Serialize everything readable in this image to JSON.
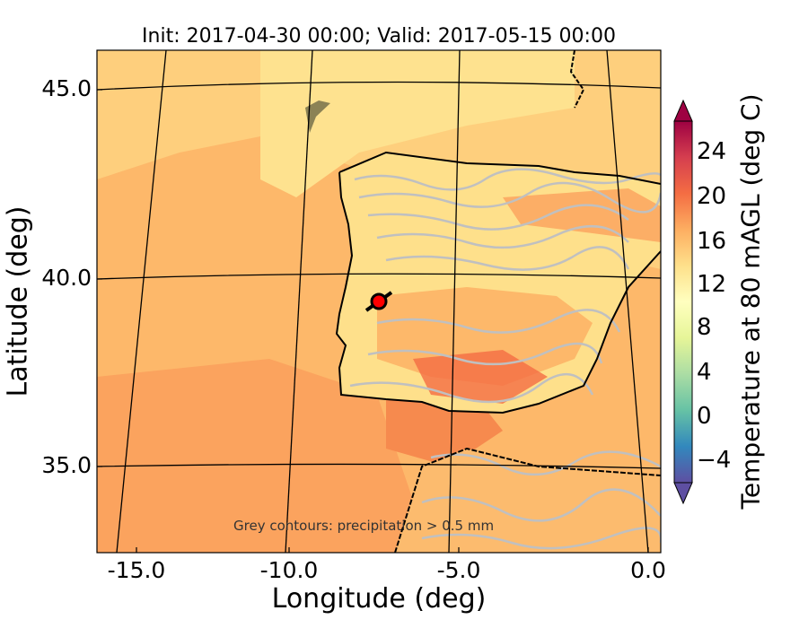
{
  "map": {
    "title": "Init: 2017-04-30 00:00; Valid: 2017-05-15 00:00",
    "xlabel": "Longitude (deg)",
    "ylabel": "Latitude (deg)",
    "annotation": "Grey contours: precipitation > 0.5 mm",
    "lon_ticks": [
      "-15.0",
      "-10.0",
      "-5.0",
      "0.0"
    ],
    "lat_ticks": [
      "45.0",
      "40.0",
      "35.0"
    ],
    "marker": "red-circle-marker",
    "colors": {
      "ocean": "#fdae61",
      "land": "#fee08b",
      "precip_contour": "#c0c0c0",
      "coastline": "#000000",
      "marker": "#ff0000"
    }
  },
  "colorbar": {
    "label": "Temperature at 80 mAGL (deg C)",
    "ticks": [
      "24",
      "20",
      "16",
      "12",
      "8",
      "4",
      "0",
      "−4"
    ],
    "tick_values": [
      24,
      20,
      16,
      12,
      8,
      4,
      0,
      -4
    ],
    "range": [
      -6,
      26
    ],
    "extend": "both",
    "colormap": [
      "#5e4fa2",
      "#3288bd",
      "#66c2a5",
      "#abdda4",
      "#e6f598",
      "#ffffbf",
      "#fee08b",
      "#fdae61",
      "#f46d43",
      "#d53e4f",
      "#9e0142"
    ]
  }
}
